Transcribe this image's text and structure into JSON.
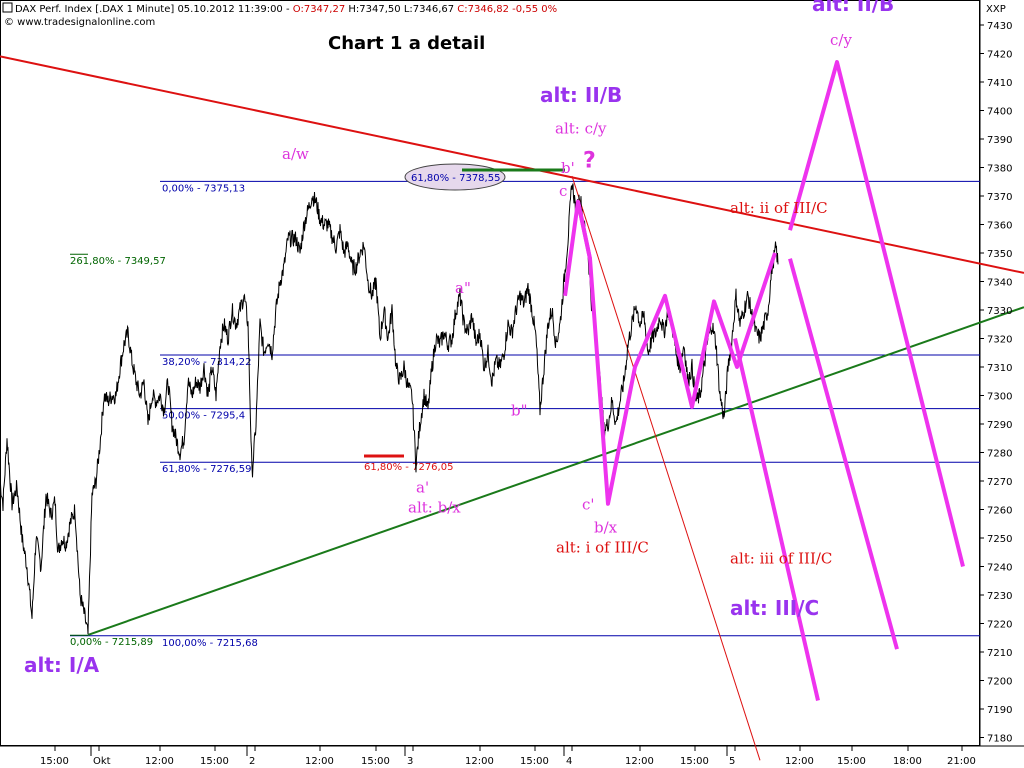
{
  "header": {
    "line1_prefix": "DAX Perf. Index [.DAX  1 Minute] 05.10.2012 11:39:00 - ",
    "open": "O:7347,27",
    "high": "H:7347,50",
    "low": "L:7346,67",
    "close_change": "C:7346,82 -0,55 0%",
    "copyright": "© www.tradesignalonline.com",
    "title": "Chart 1 a detail"
  },
  "symbol_label": "XXP",
  "colors": {
    "price": "#000000",
    "fib": "#0000aa",
    "fib_green": "#006400",
    "down_trend": "#dd1111",
    "up_trend": "#1a7a1a",
    "projection": "#ee33ee",
    "label_purple": "#9933ee",
    "label_magenta": "#dd33dd",
    "label_red": "#dd1111",
    "ellipse_fill": "#e6d8ec"
  },
  "chart_data": {
    "type": "line",
    "title": "Chart 1 a detail",
    "y_axis": {
      "ylim": [
        7172,
        7440
      ],
      "ticks": [
        7430,
        7420,
        7410,
        7400,
        7390,
        7380,
        7370,
        7360,
        7350,
        7340,
        7330,
        7320,
        7310,
        7300,
        7290,
        7280,
        7270,
        7260,
        7250,
        7240,
        7230,
        7220,
        7210,
        7200,
        7190,
        7180
      ],
      "position": "right"
    },
    "x_axis": {
      "tick_labels": [
        "15:00",
        "Okt",
        "12:00",
        "15:00",
        "2",
        "12:00",
        "15:00",
        "3",
        "12:00",
        "15:00",
        "4",
        "12:00",
        "15:00",
        "5",
        "12:00",
        "15:00",
        "18:00",
        "21:00"
      ]
    },
    "price_series": {
      "name": "DAX Perf. Index 1 Minute",
      "anchors": [
        [
          0,
          7270
        ],
        [
          3,
          7262
        ],
        [
          7,
          7285
        ],
        [
          12,
          7262
        ],
        [
          17,
          7268
        ],
        [
          22,
          7250
        ],
        [
          27,
          7240
        ],
        [
          32,
          7222
        ],
        [
          36,
          7250
        ],
        [
          41,
          7240
        ],
        [
          46,
          7265
        ],
        [
          51,
          7258
        ],
        [
          55,
          7263
        ],
        [
          58,
          7245
        ],
        [
          62,
          7250
        ],
        [
          66,
          7248
        ],
        [
          70,
          7255
        ],
        [
          75,
          7260
        ],
        [
          80,
          7230
        ],
        [
          85,
          7222
        ],
        [
          88,
          7216
        ],
        [
          92,
          7265
        ],
        [
          96,
          7270
        ],
        [
          100,
          7283
        ],
        [
          104,
          7300
        ],
        [
          108,
          7298
        ],
        [
          112,
          7300
        ],
        [
          116,
          7300
        ],
        [
          120,
          7310
        ],
        [
          124,
          7318
        ],
        [
          128,
          7322
        ],
        [
          132,
          7312
        ],
        [
          136,
          7305
        ],
        [
          140,
          7300
        ],
        [
          144,
          7305
        ],
        [
          148,
          7290
        ],
        [
          152,
          7300
        ],
        [
          156,
          7298
        ],
        [
          160,
          7300
        ],
        [
          164,
          7295
        ],
        [
          168,
          7305
        ],
        [
          172,
          7290
        ],
        [
          176,
          7285
        ],
        [
          180,
          7280
        ],
        [
          184,
          7285
        ],
        [
          188,
          7305
        ],
        [
          192,
          7300
        ],
        [
          196,
          7305
        ],
        [
          200,
          7303
        ],
        [
          204,
          7310
        ],
        [
          208,
          7300
        ],
        [
          212,
          7310
        ],
        [
          216,
          7300
        ],
        [
          220,
          7318
        ],
        [
          224,
          7325
        ],
        [
          228,
          7320
        ],
        [
          232,
          7330
        ],
        [
          236,
          7325
        ],
        [
          240,
          7330
        ],
        [
          244,
          7335
        ],
        [
          248,
          7325
        ],
        [
          252,
          7272
        ],
        [
          256,
          7290
        ],
        [
          260,
          7325
        ],
        [
          264,
          7315
        ],
        [
          268,
          7320
        ],
        [
          272,
          7315
        ],
        [
          276,
          7330
        ],
        [
          280,
          7340
        ],
        [
          284,
          7345
        ],
        [
          288,
          7355
        ],
        [
          292,
          7355
        ],
        [
          296,
          7355
        ],
        [
          300,
          7350
        ],
        [
          304,
          7360
        ],
        [
          308,
          7365
        ],
        [
          312,
          7370
        ],
        [
          316,
          7368
        ],
        [
          320,
          7362
        ],
        [
          324,
          7360
        ],
        [
          328,
          7360
        ],
        [
          332,
          7356
        ],
        [
          336,
          7352
        ],
        [
          340,
          7358
        ],
        [
          344,
          7350
        ],
        [
          348,
          7353
        ],
        [
          352,
          7345
        ],
        [
          356,
          7345
        ],
        [
          360,
          7350
        ],
        [
          364,
          7353
        ],
        [
          368,
          7340
        ],
        [
          372,
          7335
        ],
        [
          376,
          7340
        ],
        [
          380,
          7320
        ],
        [
          384,
          7330
        ],
        [
          388,
          7320
        ],
        [
          392,
          7330
        ],
        [
          396,
          7310
        ],
        [
          400,
          7305
        ],
        [
          404,
          7310
        ],
        [
          408,
          7303
        ],
        [
          412,
          7300
        ],
        [
          416,
          7276
        ],
        [
          420,
          7290
        ],
        [
          424,
          7300
        ],
        [
          428,
          7295
        ],
        [
          432,
          7310
        ],
        [
          436,
          7320
        ],
        [
          440,
          7318
        ],
        [
          444,
          7322
        ],
        [
          448,
          7318
        ],
        [
          452,
          7320
        ],
        [
          456,
          7330
        ],
        [
          460,
          7335
        ],
        [
          464,
          7325
        ],
        [
          468,
          7322
        ],
        [
          472,
          7328
        ],
        [
          476,
          7318
        ],
        [
          480,
          7322
        ],
        [
          484,
          7310
        ],
        [
          488,
          7315
        ],
        [
          492,
          7305
        ],
        [
          496,
          7312
        ],
        [
          500,
          7310
        ],
        [
          504,
          7315
        ],
        [
          508,
          7325
        ],
        [
          512,
          7322
        ],
        [
          516,
          7330
        ],
        [
          520,
          7335
        ],
        [
          524,
          7332
        ],
        [
          528,
          7338
        ],
        [
          532,
          7330
        ],
        [
          536,
          7320
        ],
        [
          540,
          7295
        ],
        [
          544,
          7310
        ],
        [
          548,
          7325
        ],
        [
          552,
          7330
        ],
        [
          556,
          7318
        ],
        [
          560,
          7325
        ],
        [
          564,
          7340
        ],
        [
          568,
          7355
        ],
        [
          572,
          7375
        ],
        [
          576,
          7365
        ],
        [
          580,
          7370
        ],
        [
          584,
          7360
        ],
        [
          588,
          7350
        ],
        [
          592,
          7330
        ],
        [
          596,
          7320
        ],
        [
          600,
          7305
        ],
        [
          604,
          7288
        ],
        [
          608,
          7290
        ],
        [
          612,
          7298
        ],
        [
          616,
          7290
        ],
        [
          620,
          7298
        ],
        [
          624,
          7305
        ],
        [
          628,
          7318
        ],
        [
          632,
          7325
        ],
        [
          636,
          7332
        ],
        [
          640,
          7325
        ],
        [
          644,
          7328
        ],
        [
          648,
          7315
        ],
        [
          652,
          7320
        ],
        [
          656,
          7322
        ],
        [
          660,
          7328
        ],
        [
          664,
          7322
        ],
        [
          668,
          7330
        ],
        [
          672,
          7325
        ],
        [
          676,
          7315
        ],
        [
          680,
          7310
        ],
        [
          684,
          7318
        ],
        [
          688,
          7305
        ],
        [
          692,
          7310
        ],
        [
          696,
          7298
        ],
        [
          700,
          7300
        ],
        [
          704,
          7310
        ],
        [
          708,
          7320
        ],
        [
          712,
          7325
        ],
        [
          716,
          7318
        ],
        [
          720,
          7300
        ],
        [
          724,
          7292
        ],
        [
          728,
          7310
        ],
        [
          732,
          7320
        ],
        [
          736,
          7335
        ],
        [
          740,
          7325
        ],
        [
          744,
          7330
        ],
        [
          748,
          7335
        ],
        [
          752,
          7328
        ],
        [
          756,
          7322
        ],
        [
          760,
          7320
        ],
        [
          764,
          7325
        ],
        [
          768,
          7330
        ],
        [
          772,
          7345
        ],
        [
          776,
          7352
        ],
        [
          778,
          7346
        ]
      ]
    },
    "fib_levels_top": [
      {
        "label": "0,00% - 7375,13",
        "value": 7375.13
      },
      {
        "label": "38,20% - 7314,22",
        "value": 7314.22
      },
      {
        "label": "50,00% - 7295,4",
        "value": 7295.4
      },
      {
        "label": "61,80% - 7276,59",
        "value": 7276.59
      },
      {
        "label": "100,00% - 7215,68",
        "value": 7215.68
      }
    ],
    "fib_levels_green": [
      {
        "label": "261,80% - 7349,57",
        "value": 7349.57
      },
      {
        "label": "0,00% - 7215,89",
        "value": 7215.89
      }
    ],
    "ellipse_label": "61,80% - 7378,55",
    "ellipse_value": 7378.55,
    "red_marker_label": "61,80% - 7276,05",
    "red_marker_value": 7276.05,
    "trendline_down": [
      [
        0,
        7419
      ],
      [
        1024,
        7343
      ]
    ],
    "trendline_up": [
      [
        88,
        7216
      ],
      [
        1024,
        7331
      ]
    ],
    "thin_red_line": [
      [
        572,
        7377
      ],
      [
        760,
        7172
      ]
    ],
    "projections": [
      [
        [
          565,
          7335
        ],
        [
          578,
          7368
        ],
        [
          590,
          7348
        ],
        [
          608,
          7262
        ],
        [
          635,
          7310
        ],
        [
          665,
          7335
        ],
        [
          692,
          7296
        ],
        [
          714,
          7333
        ],
        [
          737,
          7310
        ],
        [
          775,
          7350
        ]
      ],
      [
        [
          578,
          7368
        ],
        [
          590,
          7348
        ]
      ],
      [
        [
          735,
          7320
        ],
        [
          818,
          7193
        ]
      ],
      [
        [
          790,
          7348
        ],
        [
          897,
          7211
        ]
      ],
      [
        [
          790,
          7358
        ],
        [
          837,
          7417
        ],
        [
          963,
          7240
        ]
      ]
    ],
    "annotations": [
      {
        "text": "a/w",
        "color": "label_magenta",
        "size": 15,
        "bold": false,
        "price": 7383
      },
      {
        "text": "a\"",
        "color": "label_magenta",
        "size": 15,
        "bold": false,
        "price": 7336
      },
      {
        "text": "b\"",
        "color": "label_magenta",
        "size": 15,
        "bold": false,
        "price": 7293
      },
      {
        "text": "a'",
        "color": "label_magenta",
        "size": 15,
        "bold": false,
        "price": 7266
      },
      {
        "text": "alt: b/x",
        "color": "label_magenta",
        "size": 15,
        "bold": false,
        "price": 7259
      },
      {
        "text": "b'",
        "color": "label_magenta",
        "size": 15,
        "bold": false,
        "price": 7378
      },
      {
        "text": "c",
        "color": "label_magenta",
        "size": 15,
        "bold": false,
        "price": 7370
      },
      {
        "text": "?",
        "color": "label_magenta",
        "size": 22,
        "bold": true,
        "price": 7380
      },
      {
        "text": "c'",
        "color": "label_magenta",
        "size": 15,
        "bold": false,
        "price": 7260
      },
      {
        "text": "b/x",
        "color": "label_magenta",
        "size": 15,
        "bold": false,
        "price": 7252
      },
      {
        "text": "alt: c/y",
        "color": "label_magenta",
        "size": 15,
        "bold": false,
        "price": 7392
      },
      {
        "text": "c/y",
        "color": "label_magenta",
        "size": 15,
        "bold": false,
        "price": 7423
      },
      {
        "text": "alt: II/B",
        "color": "label_purple",
        "size": 20,
        "bold": true,
        "price": 7403
      },
      {
        "text": "alt: II/B",
        "color": "label_purple",
        "size": 20,
        "bold": true,
        "price": 7435
      },
      {
        "text": "alt: I/A",
        "color": "label_purple",
        "size": 20,
        "bold": true,
        "price": 7203
      },
      {
        "text": "alt: III/C",
        "color": "label_purple",
        "size": 20,
        "bold": true,
        "price": 7223
      },
      {
        "text": "alt: i of III/C",
        "color": "label_red",
        "size": 15,
        "bold": false,
        "price": 7245
      },
      {
        "text": "alt: ii of III/C",
        "color": "label_red",
        "size": 15,
        "bold": false,
        "price": 7364
      },
      {
        "text": "alt: iii of III/C",
        "color": "label_red",
        "size": 15,
        "bold": false,
        "price": 7241
      }
    ],
    "grid": false,
    "legend": "none"
  }
}
